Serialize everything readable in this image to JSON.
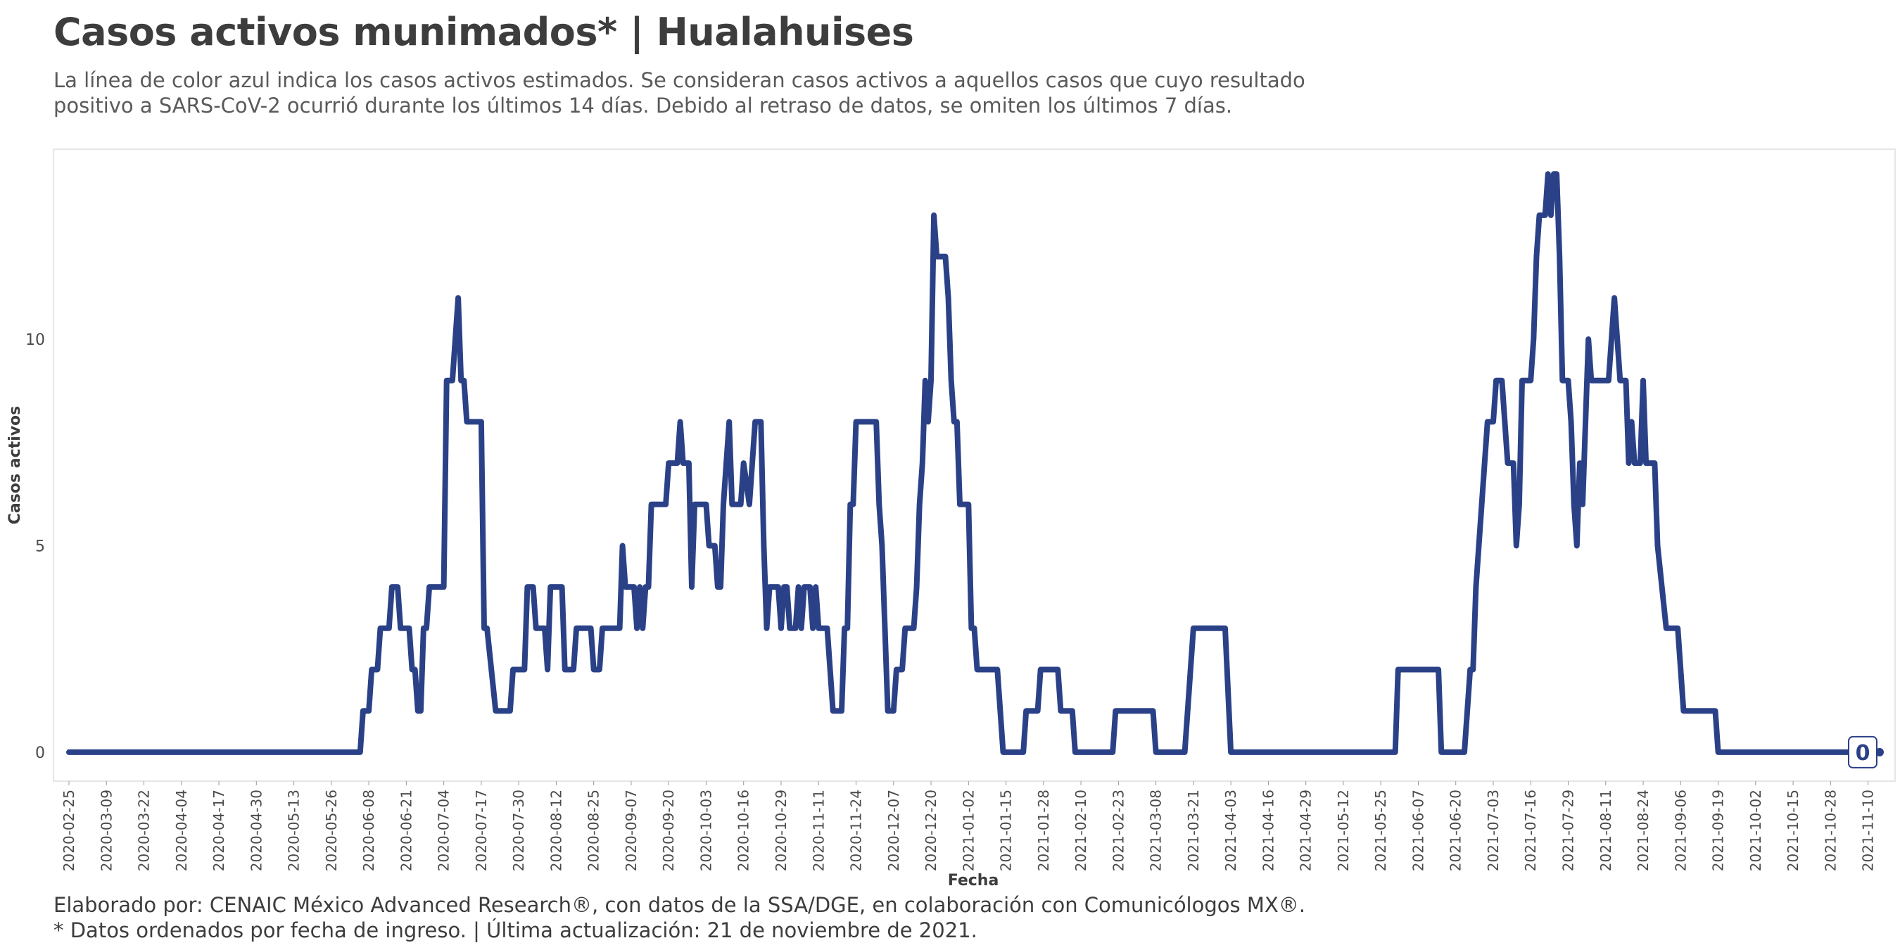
{
  "header": {
    "title": "Casos activos munimados* | Hualahuises",
    "subtitle": "La línea de color azul indica los casos activos estimados. Se consideran casos activos a aquellos casos que cuyo resultado positivo a SARS-CoV-2 ocurrió durante los últimos 14 días. Debido al retraso de datos, se omiten los últimos 7 días."
  },
  "footer": {
    "credit": "Elaborado por: CENAIC México Advanced Research®, con datos de la SSA/DGE, en colaboración con Comunicólogos MX®.",
    "note": "* Datos ordenados por fecha de ingreso. | Última actualización: 21 de noviembre de 2021."
  },
  "colors": {
    "line": "#2b4187",
    "panel_border": "#e6e6e6",
    "label_border": "#2b4187"
  },
  "chart_data": {
    "type": "line",
    "title": "Casos activos munimados* | Hualahuises",
    "xlabel": "Fecha",
    "ylabel": "Casos activos",
    "x_start": "2020-02-25",
    "x_end": "2021-11-14",
    "ylim": [
      -0.7,
      14.6
    ],
    "yticks": [
      0,
      5,
      10
    ],
    "xticks": [
      "2020-02-25",
      "2020-03-09",
      "2020-03-22",
      "2020-04-04",
      "2020-04-17",
      "2020-04-30",
      "2020-05-13",
      "2020-05-26",
      "2020-06-08",
      "2020-06-21",
      "2020-07-04",
      "2020-07-17",
      "2020-07-30",
      "2020-08-12",
      "2020-08-25",
      "2020-09-07",
      "2020-09-20",
      "2020-10-03",
      "2020-10-16",
      "2020-10-29",
      "2020-11-11",
      "2020-11-24",
      "2020-12-07",
      "2020-12-20",
      "2021-01-02",
      "2021-01-15",
      "2021-01-28",
      "2021-02-10",
      "2021-02-23",
      "2021-03-08",
      "2021-03-21",
      "2021-04-03",
      "2021-04-16",
      "2021-04-29",
      "2021-05-12",
      "2021-05-25",
      "2021-06-07",
      "2021-06-20",
      "2021-07-03",
      "2021-07-16",
      "2021-07-29",
      "2021-08-11",
      "2021-08-24",
      "2021-09-06",
      "2021-09-19",
      "2021-10-02",
      "2021-10-15",
      "2021-10-28",
      "2021-11-10"
    ],
    "grid": false,
    "legend": "none",
    "end_label": "0",
    "series": [
      {
        "values": [
          [
            "2020-02-25",
            0
          ],
          [
            "2020-06-05",
            0
          ],
          [
            "2020-06-06",
            1
          ],
          [
            "2020-06-08",
            1
          ],
          [
            "2020-06-09",
            2
          ],
          [
            "2020-06-11",
            2
          ],
          [
            "2020-06-12",
            3
          ],
          [
            "2020-06-15",
            3
          ],
          [
            "2020-06-16",
            4
          ],
          [
            "2020-06-18",
            4
          ],
          [
            "2020-06-19",
            3
          ],
          [
            "2020-06-22",
            3
          ],
          [
            "2020-06-23",
            2
          ],
          [
            "2020-06-24",
            2
          ],
          [
            "2020-06-25",
            1
          ],
          [
            "2020-06-26",
            1
          ],
          [
            "2020-06-27",
            3
          ],
          [
            "2020-06-28",
            3
          ],
          [
            "2020-06-29",
            4
          ],
          [
            "2020-07-04",
            4
          ],
          [
            "2020-07-05",
            9
          ],
          [
            "2020-07-07",
            9
          ],
          [
            "2020-07-09",
            11
          ],
          [
            "2020-07-10",
            9
          ],
          [
            "2020-07-11",
            9
          ],
          [
            "2020-07-12",
            8
          ],
          [
            "2020-07-17",
            8
          ],
          [
            "2020-07-18",
            3
          ],
          [
            "2020-07-19",
            3
          ],
          [
            "2020-07-22",
            1
          ],
          [
            "2020-07-27",
            1
          ],
          [
            "2020-07-28",
            2
          ],
          [
            "2020-08-01",
            2
          ],
          [
            "2020-08-02",
            4
          ],
          [
            "2020-08-04",
            4
          ],
          [
            "2020-08-05",
            3
          ],
          [
            "2020-08-08",
            3
          ],
          [
            "2020-08-09",
            2
          ],
          [
            "2020-08-10",
            4
          ],
          [
            "2020-08-14",
            4
          ],
          [
            "2020-08-15",
            2
          ],
          [
            "2020-08-18",
            2
          ],
          [
            "2020-08-19",
            3
          ],
          [
            "2020-08-24",
            3
          ],
          [
            "2020-08-25",
            2
          ],
          [
            "2020-08-27",
            2
          ],
          [
            "2020-08-28",
            3
          ],
          [
            "2020-09-03",
            3
          ],
          [
            "2020-09-04",
            5
          ],
          [
            "2020-09-05",
            4
          ],
          [
            "2020-09-08",
            4
          ],
          [
            "2020-09-09",
            3
          ],
          [
            "2020-09-10",
            4
          ],
          [
            "2020-09-11",
            3
          ],
          [
            "2020-09-12",
            4
          ],
          [
            "2020-09-13",
            4
          ],
          [
            "2020-09-14",
            6
          ],
          [
            "2020-09-19",
            6
          ],
          [
            "2020-09-20",
            7
          ],
          [
            "2020-09-23",
            7
          ],
          [
            "2020-09-24",
            8
          ],
          [
            "2020-09-25",
            7
          ],
          [
            "2020-09-27",
            7
          ],
          [
            "2020-09-28",
            4
          ],
          [
            "2020-09-29",
            6
          ],
          [
            "2020-10-03",
            6
          ],
          [
            "2020-10-04",
            5
          ],
          [
            "2020-10-06",
            5
          ],
          [
            "2020-10-07",
            4
          ],
          [
            "2020-10-08",
            4
          ],
          [
            "2020-10-09",
            6
          ],
          [
            "2020-10-11",
            8
          ],
          [
            "2020-10-12",
            6
          ],
          [
            "2020-10-15",
            6
          ],
          [
            "2020-10-16",
            7
          ],
          [
            "2020-10-18",
            6
          ],
          [
            "2020-10-19",
            7
          ],
          [
            "2020-10-20",
            8
          ],
          [
            "2020-10-22",
            8
          ],
          [
            "2020-10-23",
            5
          ],
          [
            "2020-10-24",
            3
          ],
          [
            "2020-10-25",
            4
          ],
          [
            "2020-10-28",
            4
          ],
          [
            "2020-10-29",
            3
          ],
          [
            "2020-10-30",
            4
          ],
          [
            "2020-10-31",
            4
          ],
          [
            "2020-11-01",
            3
          ],
          [
            "2020-11-03",
            3
          ],
          [
            "2020-11-04",
            4
          ],
          [
            "2020-11-05",
            3
          ],
          [
            "2020-11-06",
            4
          ],
          [
            "2020-11-08",
            4
          ],
          [
            "2020-11-09",
            3
          ],
          [
            "2020-11-10",
            4
          ],
          [
            "2020-11-11",
            3
          ],
          [
            "2020-11-14",
            3
          ],
          [
            "2020-11-15",
            2
          ],
          [
            "2020-11-16",
            1
          ],
          [
            "2020-11-19",
            1
          ],
          [
            "2020-11-20",
            3
          ],
          [
            "2020-11-21",
            3
          ],
          [
            "2020-11-22",
            6
          ],
          [
            "2020-11-23",
            6
          ],
          [
            "2020-11-24",
            8
          ],
          [
            "2020-12-01",
            8
          ],
          [
            "2020-12-02",
            6
          ],
          [
            "2020-12-03",
            5
          ],
          [
            "2020-12-04",
            3
          ],
          [
            "2020-12-05",
            1
          ],
          [
            "2020-12-07",
            1
          ],
          [
            "2020-12-08",
            2
          ],
          [
            "2020-12-10",
            2
          ],
          [
            "2020-12-11",
            3
          ],
          [
            "2020-12-14",
            3
          ],
          [
            "2020-12-15",
            4
          ],
          [
            "2020-12-16",
            6
          ],
          [
            "2020-12-17",
            7
          ],
          [
            "2020-12-18",
            9
          ],
          [
            "2020-12-19",
            8
          ],
          [
            "2020-12-20",
            9
          ],
          [
            "2020-12-21",
            13
          ],
          [
            "2020-12-22",
            12
          ],
          [
            "2020-12-25",
            12
          ],
          [
            "2020-12-26",
            11
          ],
          [
            "2020-12-27",
            9
          ],
          [
            "2020-12-28",
            8
          ],
          [
            "2020-12-29",
            8
          ],
          [
            "2020-12-30",
            6
          ],
          [
            "2021-01-02",
            6
          ],
          [
            "2021-01-03",
            3
          ],
          [
            "2021-01-04",
            3
          ],
          [
            "2021-01-05",
            2
          ],
          [
            "2021-01-12",
            2
          ],
          [
            "2021-01-14",
            0
          ],
          [
            "2021-01-21",
            0
          ],
          [
            "2021-01-22",
            1
          ],
          [
            "2021-01-26",
            1
          ],
          [
            "2021-01-27",
            2
          ],
          [
            "2021-02-02",
            2
          ],
          [
            "2021-02-03",
            1
          ],
          [
            "2021-02-07",
            1
          ],
          [
            "2021-02-08",
            0
          ],
          [
            "2021-02-21",
            0
          ],
          [
            "2021-02-22",
            1
          ],
          [
            "2021-03-07",
            1
          ],
          [
            "2021-03-08",
            0
          ],
          [
            "2021-03-18",
            0
          ],
          [
            "2021-03-21",
            3
          ],
          [
            "2021-04-01",
            3
          ],
          [
            "2021-04-03",
            0
          ],
          [
            "2021-05-30",
            0
          ],
          [
            "2021-05-31",
            2
          ],
          [
            "2021-06-14",
            2
          ],
          [
            "2021-06-15",
            0
          ],
          [
            "2021-06-23",
            0
          ],
          [
            "2021-06-25",
            2
          ],
          [
            "2021-06-26",
            2
          ],
          [
            "2021-06-27",
            4
          ],
          [
            "2021-07-01",
            8
          ],
          [
            "2021-07-03",
            8
          ],
          [
            "2021-07-04",
            9
          ],
          [
            "2021-07-06",
            9
          ],
          [
            "2021-07-08",
            7
          ],
          [
            "2021-07-10",
            7
          ],
          [
            "2021-07-11",
            5
          ],
          [
            "2021-07-12",
            6
          ],
          [
            "2021-07-13",
            9
          ],
          [
            "2021-07-16",
            9
          ],
          [
            "2021-07-17",
            10
          ],
          [
            "2021-07-18",
            12
          ],
          [
            "2021-07-19",
            13
          ],
          [
            "2021-07-21",
            13
          ],
          [
            "2021-07-22",
            14
          ],
          [
            "2021-07-23",
            13
          ],
          [
            "2021-07-24",
            14
          ],
          [
            "2021-07-25",
            14
          ],
          [
            "2021-07-26",
            12
          ],
          [
            "2021-07-27",
            9
          ],
          [
            "2021-07-29",
            9
          ],
          [
            "2021-07-30",
            8
          ],
          [
            "2021-07-31",
            6
          ],
          [
            "2021-08-01",
            5
          ],
          [
            "2021-08-02",
            7
          ],
          [
            "2021-08-03",
            6
          ],
          [
            "2021-08-05",
            10
          ],
          [
            "2021-08-06",
            9
          ],
          [
            "2021-08-12",
            9
          ],
          [
            "2021-08-14",
            11
          ],
          [
            "2021-08-16",
            9
          ],
          [
            "2021-08-18",
            9
          ],
          [
            "2021-08-19",
            7
          ],
          [
            "2021-08-20",
            8
          ],
          [
            "2021-08-21",
            7
          ],
          [
            "2021-08-23",
            7
          ],
          [
            "2021-08-24",
            9
          ],
          [
            "2021-08-25",
            7
          ],
          [
            "2021-08-28",
            7
          ],
          [
            "2021-08-29",
            5
          ],
          [
            "2021-09-01",
            3
          ],
          [
            "2021-09-05",
            3
          ],
          [
            "2021-09-07",
            1
          ],
          [
            "2021-09-18",
            1
          ],
          [
            "2021-09-19",
            0
          ],
          [
            "2021-11-14",
            0
          ]
        ]
      }
    ]
  }
}
